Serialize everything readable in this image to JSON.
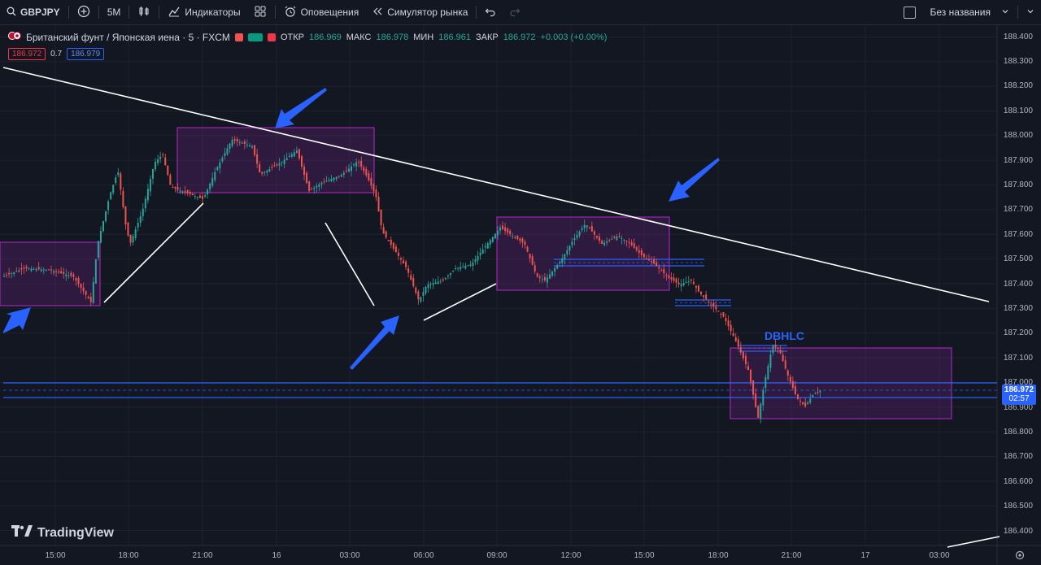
{
  "toolbar": {
    "symbol": "GBPJPY",
    "interval": "5М",
    "indicators": "Индикаторы",
    "alerts": "Оповещения",
    "replay": "Симулятор рынка",
    "layout_name": "Без названия"
  },
  "legend": {
    "title": "Британский фунт / Японская иена · 5 · FXCM",
    "open_label": "ОТКР",
    "open": "186.969",
    "high_label": "МАКС",
    "high": "186.978",
    "low_label": "МИН",
    "low": "186.961",
    "close_label": "ЗАКР",
    "close": "186.972",
    "change": "+0.003 (+0.00%)"
  },
  "quote": {
    "sell": "186.972",
    "spread": "0.7",
    "buy": "186.979"
  },
  "price_axis": [
    "188.400",
    "188.300",
    "188.200",
    "188.100",
    "188.000",
    "187.900",
    "187.800",
    "187.700",
    "187.600",
    "187.500",
    "187.400",
    "187.300",
    "187.200",
    "187.100",
    "187.000",
    "186.900",
    "186.800",
    "186.700",
    "186.600",
    "186.500",
    "186.400"
  ],
  "time_axis": [
    "15:00",
    "18:00",
    "21:00",
    "16",
    "03:00",
    "06:00",
    "09:00",
    "12:00",
    "15:00",
    "18:00",
    "21:00",
    "17",
    "03:00"
  ],
  "current_price": {
    "price": "186.972",
    "countdown": "02:57"
  },
  "annotation": "DBHLC",
  "brand": "TradingView",
  "colors": {
    "up": "#26a69a",
    "down": "#ef5350",
    "accent": "#2962ff",
    "box": "#9c27b0"
  }
}
